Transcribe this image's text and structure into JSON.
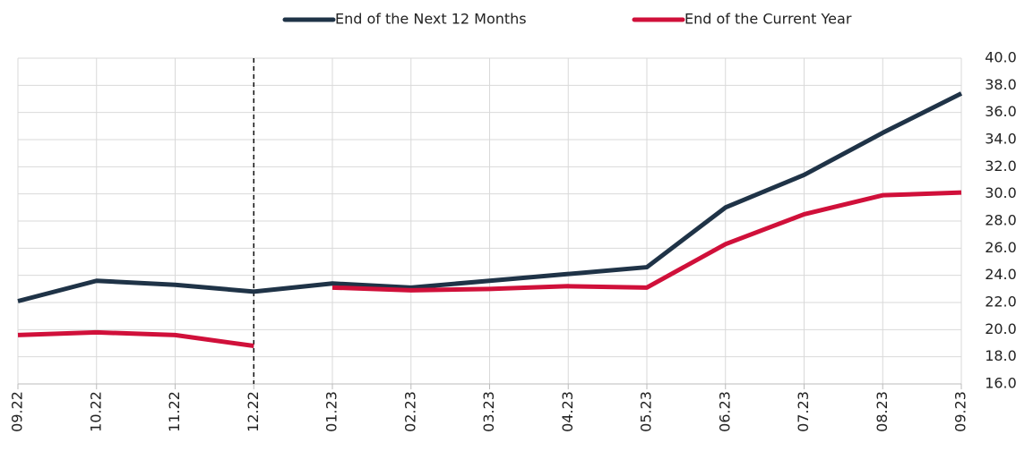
{
  "chart_data": {
    "type": "line",
    "categories": [
      "09.22",
      "10.22",
      "11.22",
      "12.22",
      "01.23",
      "02.23",
      "03.23",
      "04.23",
      "05.23",
      "06.23",
      "07.23",
      "08.23",
      "09.23"
    ],
    "series": [
      {
        "name": "End of the Next 12 Months",
        "color": "#1f3347",
        "values": [
          22.1,
          23.6,
          23.3,
          22.8,
          23.4,
          23.1,
          23.6,
          24.1,
          24.6,
          29.0,
          31.4,
          34.5,
          37.4
        ]
      },
      {
        "name": "End of the Current Year",
        "color": "#d0103a",
        "values": [
          19.6,
          19.8,
          19.6,
          18.8,
          23.1,
          22.9,
          23.0,
          23.2,
          23.1,
          26.3,
          28.5,
          29.9,
          30.1
        ],
        "break_after": "12.22"
      }
    ],
    "divider": "12.22",
    "ylim": [
      16,
      40
    ],
    "yticks": [
      {
        "value": 16,
        "label": "16.0"
      },
      {
        "value": 18,
        "label": "18.0"
      },
      {
        "value": 20,
        "label": "20.0"
      },
      {
        "value": 22,
        "label": "22.0"
      },
      {
        "value": 24,
        "label": "24.0"
      },
      {
        "value": 26,
        "label": "26.0"
      },
      {
        "value": 28,
        "label": "28.0"
      },
      {
        "value": 30,
        "label": "30.0"
      },
      {
        "value": 32,
        "label": "32.0"
      },
      {
        "value": 34,
        "label": "34.0"
      },
      {
        "value": 36,
        "label": "36.0"
      },
      {
        "value": 38,
        "label": "38.0"
      },
      {
        "value": 40,
        "label": "40.0"
      }
    ],
    "grid": true,
    "y_axis_side": "right",
    "legend": "top"
  }
}
